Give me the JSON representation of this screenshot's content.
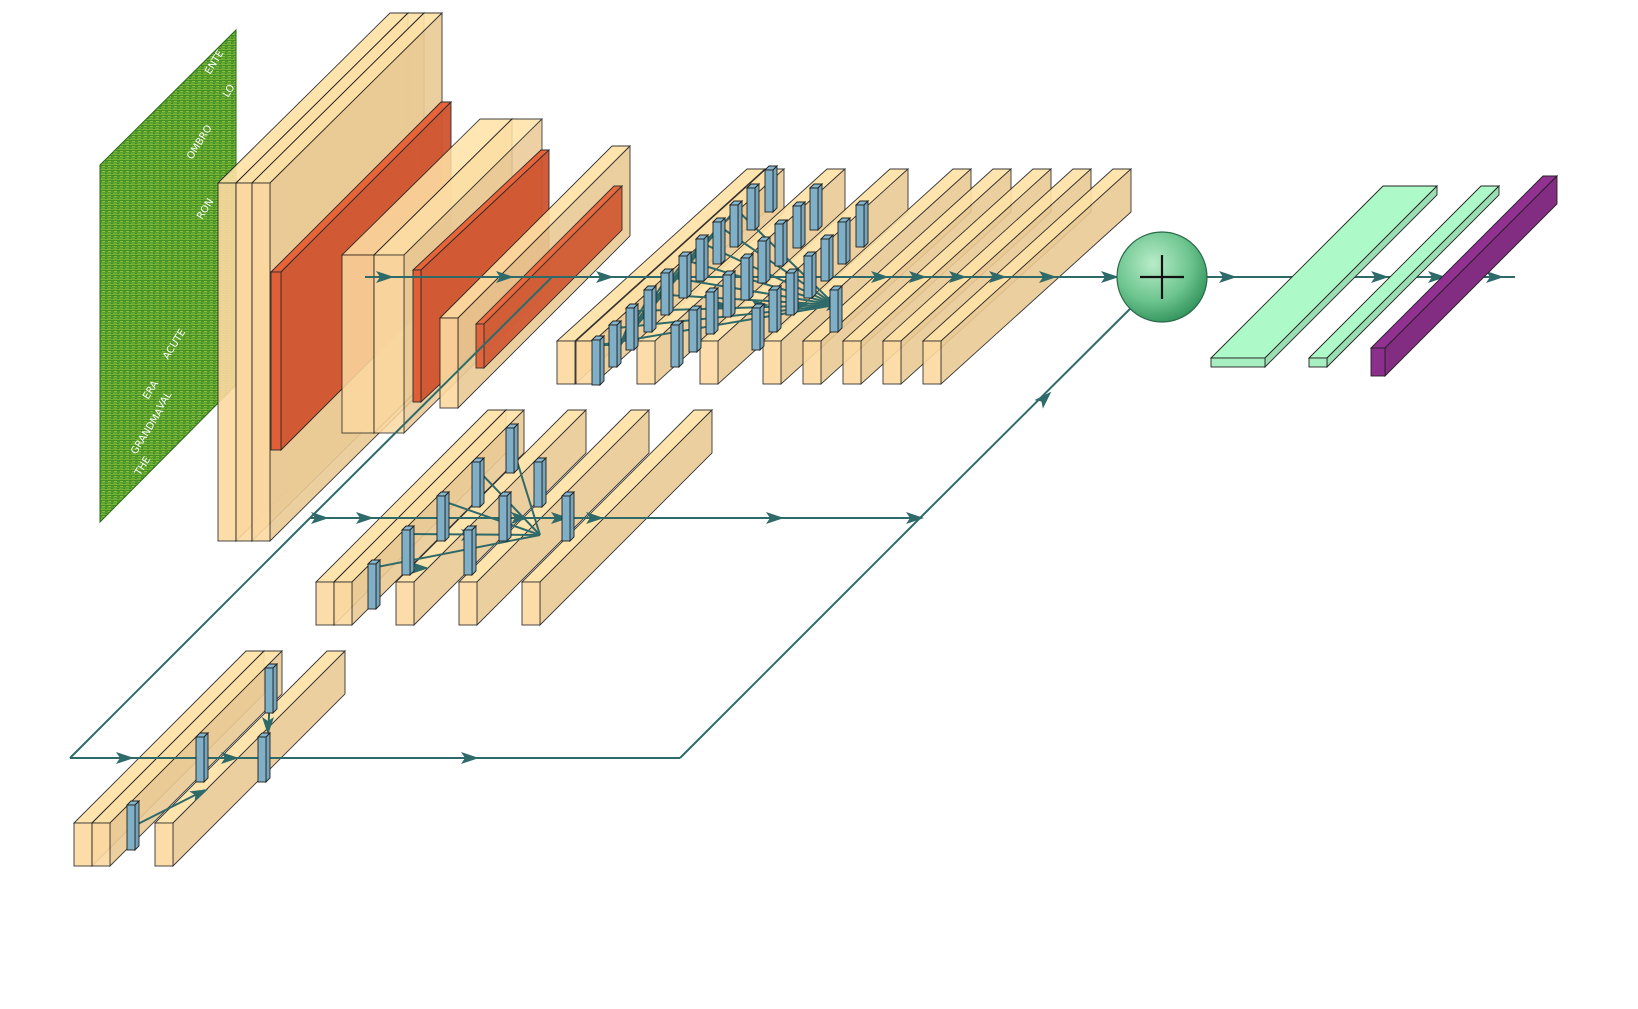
{
  "diagram": {
    "type": "3d-neural-network-architecture",
    "input": {
      "kind": "spectrogram",
      "word_labels": [
        "ENTE",
        "LO",
        "OMBRO",
        "RON",
        "ACUTE",
        "ERA",
        "VAL",
        "GRANDMA",
        "THE"
      ]
    },
    "colors": {
      "conv_block": "#fcd9a0",
      "pool_block": "#e05a33",
      "filter": "#7fb0c8",
      "connection": "#2f6a6a",
      "sum_node": "#6cc48e",
      "dense": "#a7efc0",
      "softmax": "#8c2f8c",
      "spectrogram": "#3c8c2a"
    },
    "icons": {
      "sum_node": "plus-icon",
      "arrow": "arrowhead-icon"
    }
  }
}
